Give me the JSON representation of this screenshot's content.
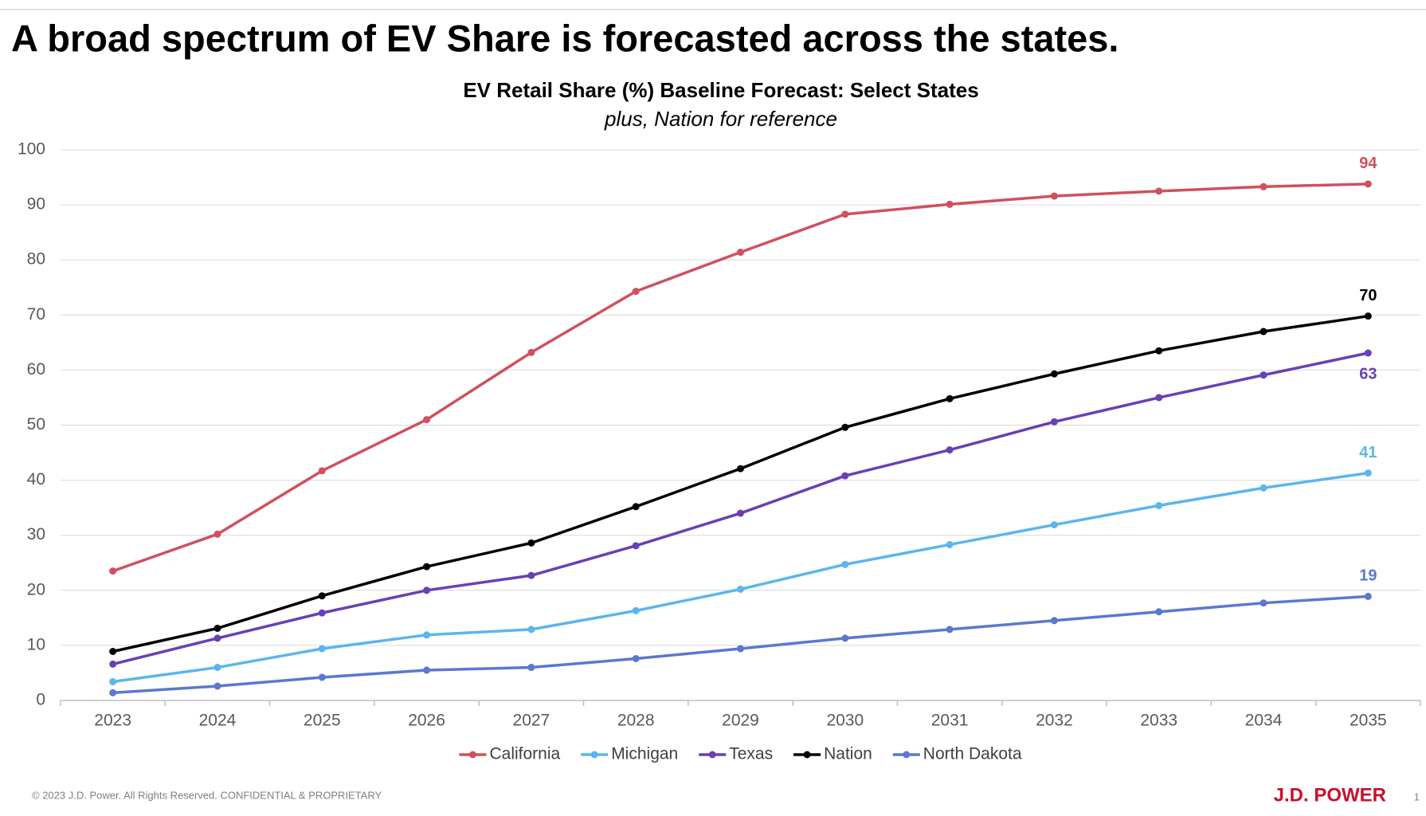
{
  "chart_data": {
    "type": "line",
    "title": "A broad spectrum of EV Share is forecasted across the states.",
    "subtitle": "EV Retail Share (%) Baseline Forecast: Select States",
    "note": "plus, Nation for reference",
    "categories": [
      "2023",
      "2024",
      "2025",
      "2026",
      "2027",
      "2028",
      "2029",
      "2030",
      "2031",
      "2032",
      "2033",
      "2034",
      "2035"
    ],
    "ylim": [
      0,
      100
    ],
    "yticks": [
      0,
      10,
      20,
      30,
      40,
      50,
      60,
      70,
      80,
      90,
      100
    ],
    "grid": true,
    "legend": "bottom",
    "series": [
      {
        "name": "California",
        "color": "#d0505f",
        "label_position": "above",
        "values": [
          23.5,
          30.2,
          41.7,
          51.0,
          63.2,
          74.3,
          81.4,
          88.3,
          90.1,
          91.6,
          92.5,
          93.3,
          93.8
        ],
        "value_labels": [
          null,
          null,
          null,
          null,
          null,
          null,
          null,
          null,
          null,
          null,
          null,
          null,
          "94"
        ]
      },
      {
        "name": "Michigan",
        "color": "#5cb5ec",
        "label_position": "above",
        "values": [
          3.4,
          6.0,
          9.4,
          11.9,
          12.9,
          16.3,
          20.2,
          24.7,
          28.3,
          31.9,
          35.4,
          38.6,
          41.3
        ],
        "value_labels": [
          null,
          null,
          null,
          null,
          null,
          null,
          null,
          null,
          null,
          null,
          null,
          null,
          "41"
        ]
      },
      {
        "name": "Texas",
        "color": "#6a3fb5",
        "label_position": "below",
        "values": [
          6.6,
          11.3,
          15.9,
          20.0,
          22.7,
          28.1,
          34.0,
          40.8,
          45.5,
          50.6,
          55.0,
          59.1,
          63.1
        ],
        "value_labels": [
          null,
          null,
          null,
          null,
          null,
          null,
          null,
          null,
          null,
          null,
          null,
          null,
          "63"
        ]
      },
      {
        "name": "Nation",
        "color": "#000000",
        "label_position": "above",
        "values": [
          8.9,
          13.1,
          19.0,
          24.3,
          28.6,
          35.2,
          42.1,
          49.6,
          54.8,
          59.3,
          63.5,
          67.0,
          69.8
        ],
        "value_labels": [
          null,
          null,
          null,
          null,
          null,
          null,
          null,
          null,
          null,
          null,
          null,
          null,
          "70"
        ]
      },
      {
        "name": "North Dakota",
        "color": "#5a78d0",
        "label_position": "above",
        "values": [
          1.4,
          2.6,
          4.2,
          5.5,
          6.0,
          7.6,
          9.4,
          11.3,
          12.9,
          14.5,
          16.1,
          17.7,
          18.9
        ],
        "value_labels": [
          null,
          null,
          null,
          null,
          null,
          null,
          null,
          null,
          null,
          null,
          null,
          null,
          "19"
        ]
      }
    ]
  },
  "footer": {
    "copyright": "© 2023 J.D. Power. All Rights Reserved. CONFIDENTIAL & PROPRIETARY",
    "brand": "J.D. POWER",
    "page": "1"
  }
}
